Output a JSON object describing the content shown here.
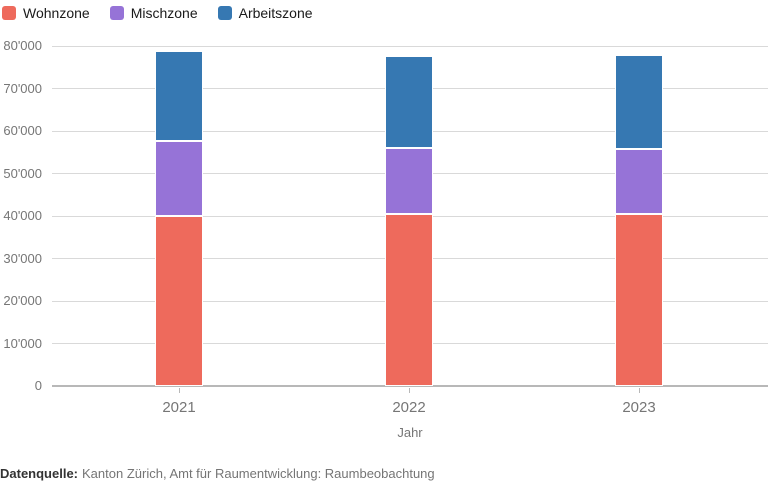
{
  "chart_data": {
    "type": "bar",
    "stacked": true,
    "categories": [
      "2021",
      "2022",
      "2023"
    ],
    "series": [
      {
        "name": "Wohnzone",
        "color": "#ee6a5c",
        "values": [
          39900,
          40400,
          40400
        ]
      },
      {
        "name": "Mischzone",
        "color": "#9673d7",
        "values": [
          17700,
          15500,
          15300
        ]
      },
      {
        "name": "Arbeitszone",
        "color": "#3678b2",
        "values": [
          21200,
          21800,
          22200
        ]
      }
    ],
    "xlabel": "Jahr",
    "ylabel": "",
    "ylim": [
      0,
      80000
    ],
    "ytick_step": 10000,
    "ytick_labels": [
      "0",
      "10'000",
      "20'000",
      "30'000",
      "40'000",
      "50'000",
      "60'000",
      "70'000",
      "80'000"
    ],
    "grid": true,
    "legend_position": "top-left"
  },
  "footer": {
    "source_label": "Datenquelle:",
    "source_text": "Kanton Zürich, Amt für Raumentwicklung: Raumbeobachtung"
  },
  "style": {
    "grid_color": "#d9d9d9",
    "baseline_color": "#b8b8b8",
    "axis_text_color": "#767676",
    "legend_text_color": "#1a1a1a",
    "source_label_color": "#333333",
    "source_text_color": "#757575"
  }
}
